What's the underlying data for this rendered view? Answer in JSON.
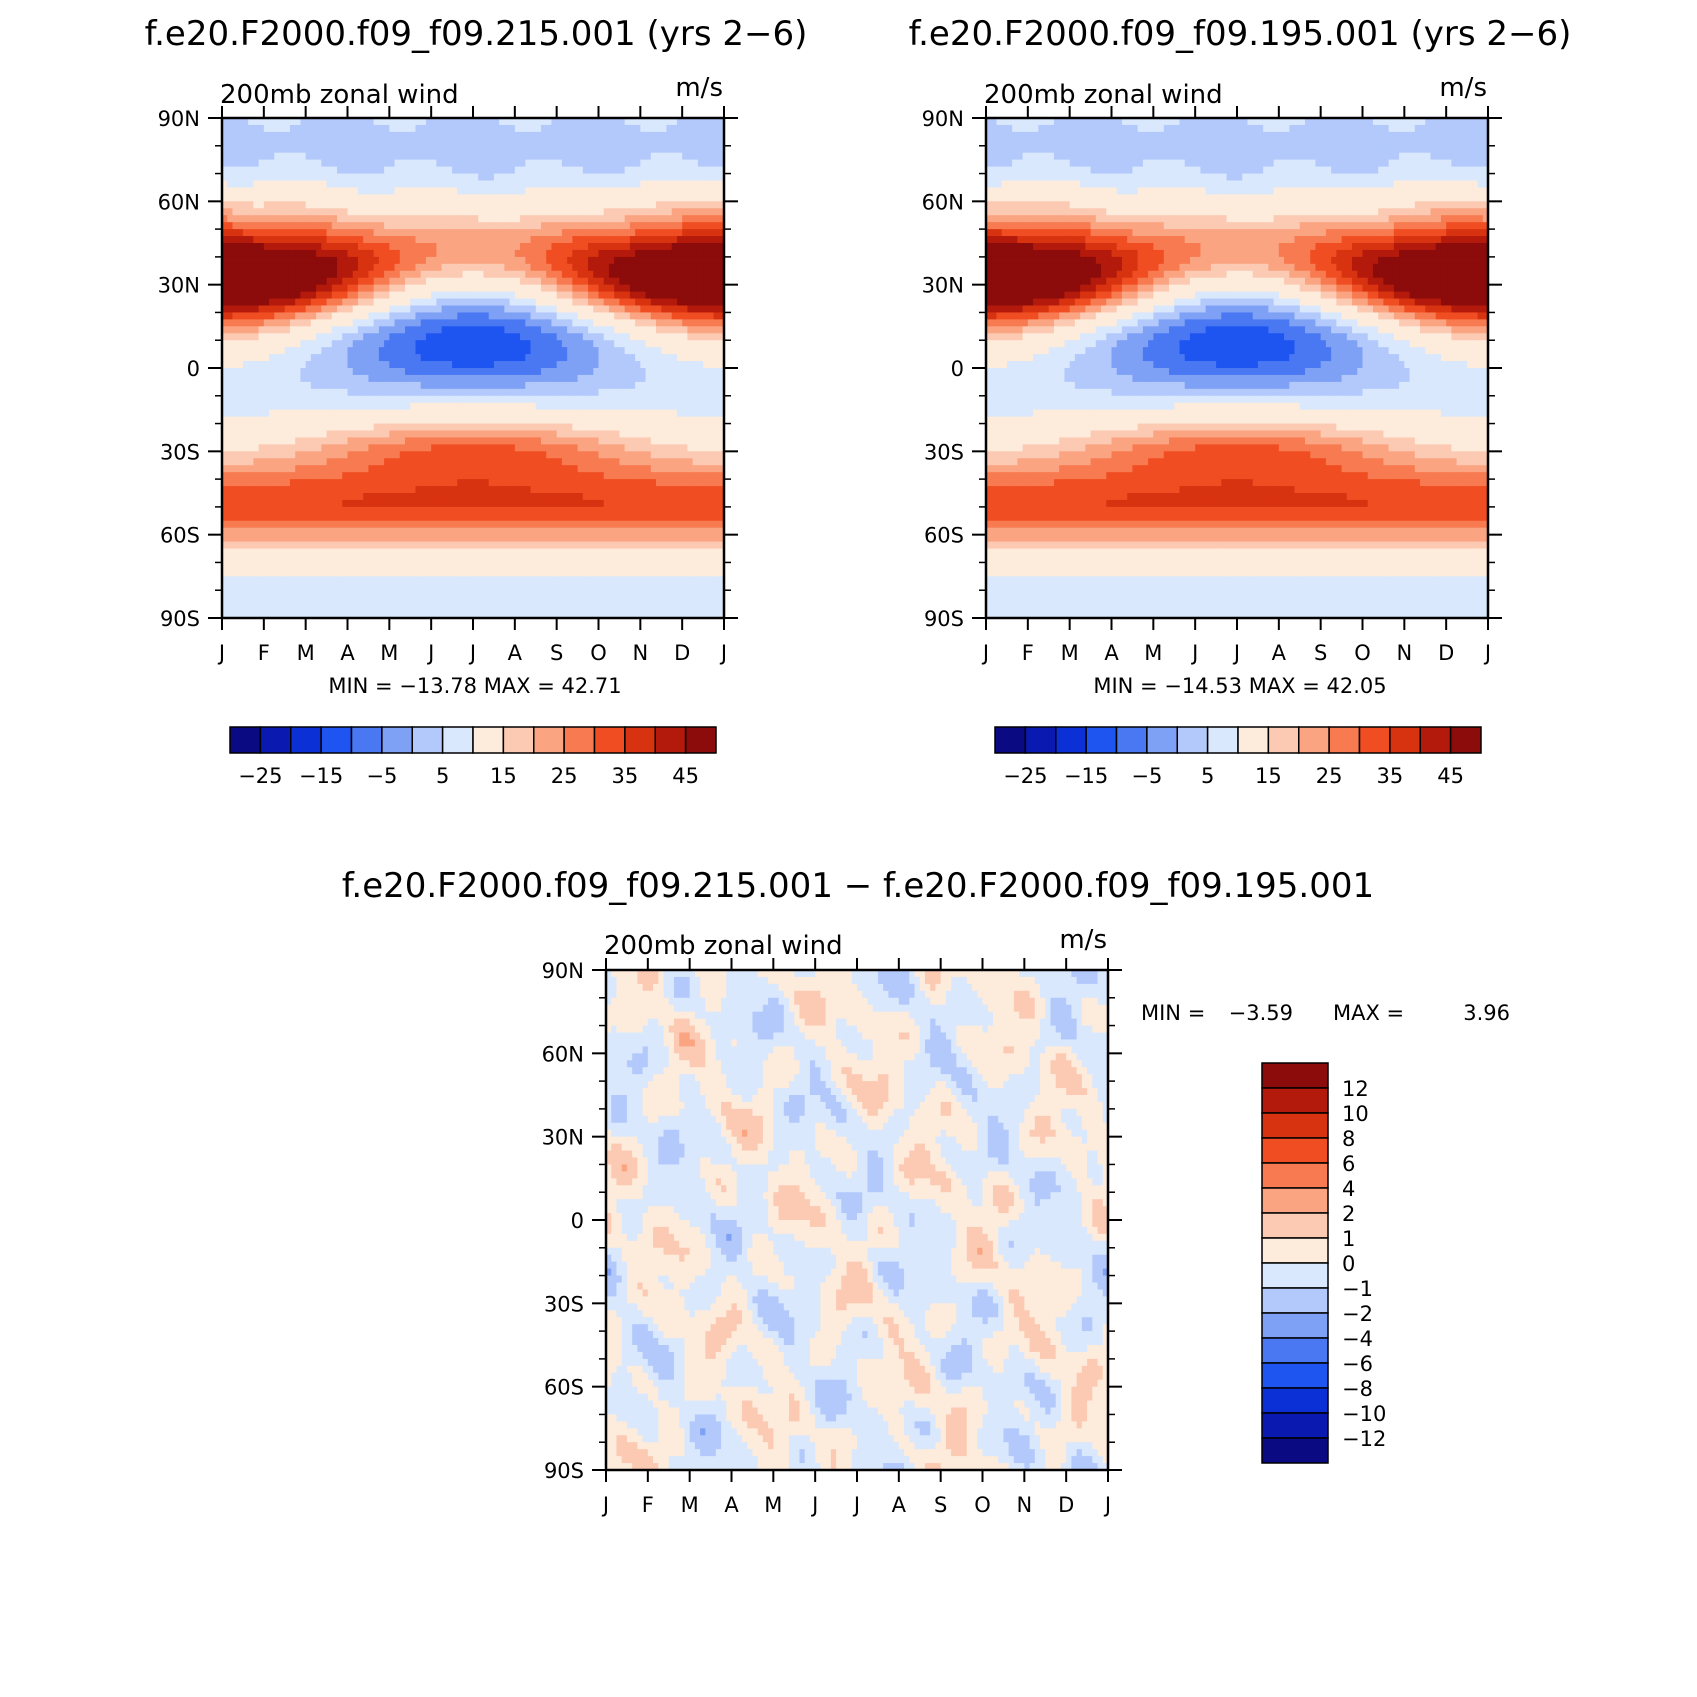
{
  "colors": {
    "abs_palette": [
      "#0a0a82",
      "#0a1ab0",
      "#0b31d6",
      "#1e55f0",
      "#4a78f2",
      "#7ea1f5",
      "#b3c9fb",
      "#d9e8fc",
      "#fdebdc",
      "#fccab3",
      "#fba482",
      "#f77a50",
      "#f04e22",
      "#d83310",
      "#b41a0c",
      "#8c0b0b"
    ],
    "diff_palette": [
      "#0a0a82",
      "#0a1ab0",
      "#0b31d6",
      "#1e55f0",
      "#4a78f2",
      "#7ea1f5",
      "#b3c9fb",
      "#d9e8fc",
      "#fdebdc",
      "#fccab3",
      "#fba482",
      "#f77a50",
      "#f04e22",
      "#d83310",
      "#b41a0c",
      "#8c0b0b"
    ]
  },
  "chart_data": [
    {
      "type": "heatmap",
      "title": "f.e20.F2000.f09_f09.215.001 (yrs 2−6)",
      "left_label": "200mb zonal wind",
      "right_label": "m/s",
      "x_ticks": [
        "J",
        "F",
        "M",
        "A",
        "M",
        "J",
        "J",
        "A",
        "S",
        "O",
        "N",
        "D",
        "J"
      ],
      "y_ticks": [
        "90N",
        "60N",
        "30N",
        "0",
        "30S",
        "60S",
        "90S"
      ],
      "stats": "MIN = −13.78  MAX =   42.71",
      "min": -13.78,
      "max": 42.71,
      "colorbar_labels": [
        "−25",
        "−15",
        "−5",
        "5",
        "15",
        "25",
        "35",
        "45"
      ],
      "contour_levels": [
        -30,
        -25,
        -20,
        -15,
        -10,
        -5,
        0,
        5,
        10,
        15,
        20,
        25,
        30,
        35,
        40,
        45
      ],
      "features": [
        {
          "lat": 30,
          "month": 0.2,
          "value": 42
        },
        {
          "lat": 30,
          "month": 12.0,
          "value": 41
        },
        {
          "lat": 8,
          "month": 7.0,
          "value": -13
        },
        {
          "lat": -30,
          "month": 6.8,
          "value": 38
        },
        {
          "lat": -50,
          "month": 2.0,
          "value": 31
        },
        {
          "lat": -50,
          "month": 10.5,
          "value": 31
        }
      ]
    },
    {
      "type": "heatmap",
      "title": "f.e20.F2000.f09_f09.195.001 (yrs 2−6)",
      "left_label": "200mb zonal wind",
      "right_label": "m/s",
      "x_ticks": [
        "J",
        "F",
        "M",
        "A",
        "M",
        "J",
        "J",
        "A",
        "S",
        "O",
        "N",
        "D",
        "J"
      ],
      "y_ticks": [
        "90N",
        "60N",
        "30N",
        "0",
        "30S",
        "60S",
        "90S"
      ],
      "stats": "MIN = −14.53  MAX =   42.05",
      "min": -14.53,
      "max": 42.05,
      "colorbar_labels": [
        "−25",
        "−15",
        "−5",
        "5",
        "15",
        "25",
        "35",
        "45"
      ],
      "contour_levels": [
        -30,
        -25,
        -20,
        -15,
        -10,
        -5,
        0,
        5,
        10,
        15,
        20,
        25,
        30,
        35,
        40,
        45
      ],
      "features": [
        {
          "lat": 30,
          "month": 0.2,
          "value": 42
        },
        {
          "lat": 30,
          "month": 12.0,
          "value": 40
        },
        {
          "lat": 8,
          "month": 7.0,
          "value": -14
        },
        {
          "lat": -30,
          "month": 6.8,
          "value": 37
        },
        {
          "lat": -50,
          "month": 2.0,
          "value": 31
        },
        {
          "lat": -50,
          "month": 10.5,
          "value": 31
        }
      ]
    },
    {
      "type": "heatmap",
      "title": "f.e20.F2000.f09_f09.215.001 − f.e20.F2000.f09_f09.195.001",
      "left_label": "200mb zonal wind",
      "right_label": "m/s",
      "x_ticks": [
        "J",
        "F",
        "M",
        "A",
        "M",
        "J",
        "J",
        "A",
        "S",
        "O",
        "N",
        "D",
        "J"
      ],
      "y_ticks": [
        "90N",
        "60N",
        "30N",
        "0",
        "30S",
        "60S",
        "90S"
      ],
      "stats_min_label": "MIN =",
      "stats_min_value": "−3.59",
      "stats_max_label": "MAX =",
      "stats_max_value": "3.96",
      "min": -3.59,
      "max": 3.96,
      "colorbar_labels": [
        "12",
        "10",
        "8",
        "6",
        "4",
        "2",
        "1",
        "0",
        "−1",
        "−2",
        "−4",
        "−6",
        "−8",
        "−10",
        "−12"
      ],
      "contour_levels": [
        -12,
        -10,
        -8,
        -6,
        -4,
        -2,
        -1,
        0,
        1,
        2,
        4,
        6,
        8,
        10,
        12
      ]
    }
  ]
}
